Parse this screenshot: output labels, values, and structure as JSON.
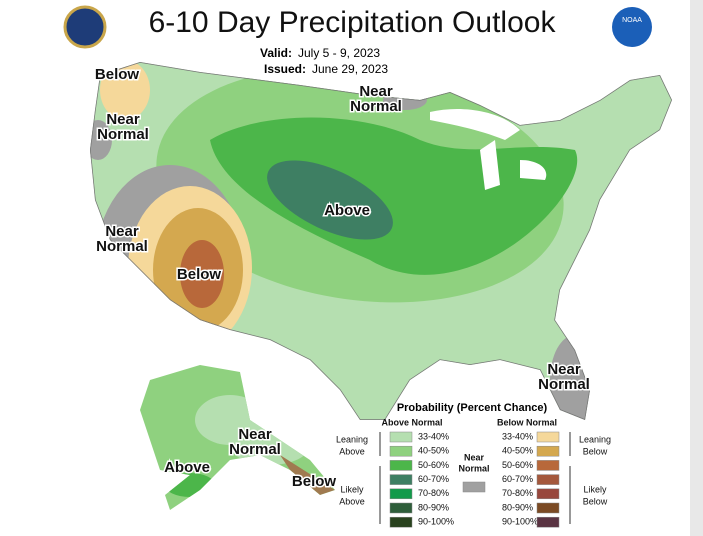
{
  "header": {
    "title": "6-10 Day Precipitation Outlook",
    "valid_label": "Valid:",
    "valid_dates": "July 5 - 9, 2023",
    "issued_label": "Issued:",
    "issued_date": "June 29, 2023",
    "noaa_logo": "NOAA"
  },
  "map_labels": [
    {
      "lines": [
        "Below"
      ]
    },
    {
      "lines": [
        "Near",
        "Normal"
      ]
    },
    {
      "lines": [
        "Near",
        "Normal"
      ]
    },
    {
      "lines": [
        "Above"
      ]
    },
    {
      "lines": [
        "Near",
        "Normal"
      ]
    },
    {
      "lines": [
        "Below"
      ]
    },
    {
      "lines": [
        "Near",
        "Normal"
      ]
    },
    {
      "lines": [
        "Near",
        "Normal"
      ]
    },
    {
      "lines": [
        "Above"
      ]
    },
    {
      "lines": [
        "Below"
      ]
    }
  ],
  "legend": {
    "title": "Probability (Percent Chance)",
    "above_header": "Above Normal",
    "below_header": "Below Normal",
    "above_bins": [
      {
        "label": "33-40%",
        "color": "#b5dfb0"
      },
      {
        "label": "40-50%",
        "color": "#8fd17f"
      },
      {
        "label": "50-60%",
        "color": "#4cb64a"
      },
      {
        "label": "60-70%",
        "color": "#3e7f63"
      },
      {
        "label": "70-80%",
        "color": "#129a4a"
      },
      {
        "label": "80-90%",
        "color": "#2e5e3a"
      },
      {
        "label": "90-100%",
        "color": "#29421e"
      }
    ],
    "below_bins": [
      {
        "label": "33-40%",
        "color": "#f5d89a"
      },
      {
        "label": "40-50%",
        "color": "#d4a84f"
      },
      {
        "label": "50-60%",
        "color": "#b8683a"
      },
      {
        "label": "60-70%",
        "color": "#a4583c"
      },
      {
        "label": "70-80%",
        "color": "#98473c"
      },
      {
        "label": "80-90%",
        "color": "#7b4a23"
      },
      {
        "label": "90-100%",
        "color": "#5a3342"
      }
    ],
    "near_normal": {
      "lines": [
        "Near",
        "Normal"
      ],
      "color": "#a0a0a0"
    },
    "groups": [
      {
        "lines": [
          "Leaning",
          "Above"
        ]
      },
      {
        "lines": [
          "Likely",
          "Above"
        ]
      },
      {
        "lines": [
          "Leaning",
          "Below"
        ]
      },
      {
        "lines": [
          "Likely",
          "Below"
        ]
      }
    ]
  }
}
